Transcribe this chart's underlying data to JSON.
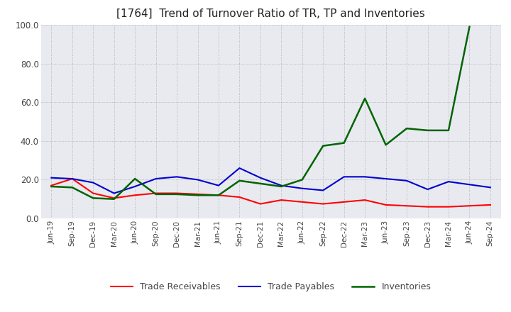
{
  "title": "[1764]  Trend of Turnover Ratio of TR, TP and Inventories",
  "x_labels": [
    "Jun-19",
    "Sep-19",
    "Dec-19",
    "Mar-20",
    "Jun-20",
    "Sep-20",
    "Dec-20",
    "Mar-21",
    "Jun-21",
    "Sep-21",
    "Dec-21",
    "Mar-22",
    "Jun-22",
    "Sep-22",
    "Dec-22",
    "Mar-23",
    "Jun-23",
    "Sep-23",
    "Dec-23",
    "Mar-24",
    "Jun-24",
    "Sep-24"
  ],
  "trade_receivables": [
    17.0,
    20.5,
    13.0,
    10.5,
    12.0,
    13.0,
    13.0,
    12.5,
    12.0,
    11.0,
    7.5,
    9.5,
    8.5,
    7.5,
    8.5,
    9.5,
    7.0,
    6.5,
    6.0,
    6.0,
    6.5,
    7.0
  ],
  "trade_payables": [
    21.0,
    20.5,
    18.5,
    13.0,
    16.5,
    20.5,
    21.5,
    20.0,
    17.0,
    26.0,
    21.0,
    17.0,
    15.5,
    14.5,
    21.5,
    21.5,
    20.5,
    19.5,
    15.0,
    19.0,
    17.5,
    16.0
  ],
  "inventories": [
    16.5,
    16.0,
    10.5,
    10.0,
    20.5,
    12.5,
    12.5,
    12.0,
    12.0,
    19.5,
    18.0,
    16.5,
    20.0,
    37.5,
    39.0,
    62.0,
    38.0,
    46.5,
    45.5,
    45.5,
    99.0,
    null
  ],
  "ylim": [
    0,
    100
  ],
  "ytick_values": [
    0.0,
    20.0,
    40.0,
    60.0,
    80.0,
    100.0
  ],
  "tr_color": "#ff0000",
  "tp_color": "#0000cd",
  "inv_color": "#006400",
  "bg_color": "#ffffff",
  "plot_bg_color": "#e8eaf0",
  "grid_color": "#aaaaaa",
  "legend_labels": [
    "Trade Receivables",
    "Trade Payables",
    "Inventories"
  ]
}
